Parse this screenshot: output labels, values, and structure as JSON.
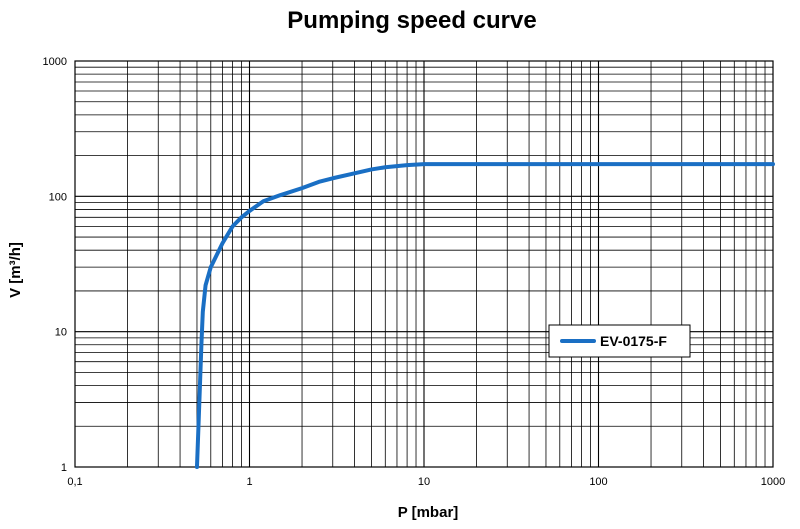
{
  "chart_data": {
    "type": "line",
    "title": "Pumping speed curve",
    "xlabel": "P [mbar]",
    "ylabel": "V [m³/h]",
    "xscale": "log",
    "yscale": "log",
    "xlim": [
      0.1,
      1000
    ],
    "ylim": [
      1,
      1000
    ],
    "x_tick_labels": [
      "0,1",
      "1",
      "10",
      "100",
      "1000"
    ],
    "y_tick_labels": [
      "1",
      "10",
      "100",
      "1000"
    ],
    "grid": true,
    "legend_position": "right-middle",
    "series": [
      {
        "name": "EV-0175-F",
        "color": "#1a6fc4",
        "points": [
          [
            0.5,
            1
          ],
          [
            0.51,
            2
          ],
          [
            0.52,
            4
          ],
          [
            0.53,
            8
          ],
          [
            0.54,
            14
          ],
          [
            0.56,
            22
          ],
          [
            0.6,
            30
          ],
          [
            0.7,
            45
          ],
          [
            0.8,
            60
          ],
          [
            0.9,
            70
          ],
          [
            1.0,
            78
          ],
          [
            1.2,
            92
          ],
          [
            1.5,
            102
          ],
          [
            2.0,
            115
          ],
          [
            2.5,
            128
          ],
          [
            3.0,
            136
          ],
          [
            4.0,
            148
          ],
          [
            5.0,
            158
          ],
          [
            6.0,
            164
          ],
          [
            8.0,
            170
          ],
          [
            10,
            173
          ],
          [
            100,
            173
          ],
          [
            1000,
            173
          ]
        ]
      }
    ]
  }
}
